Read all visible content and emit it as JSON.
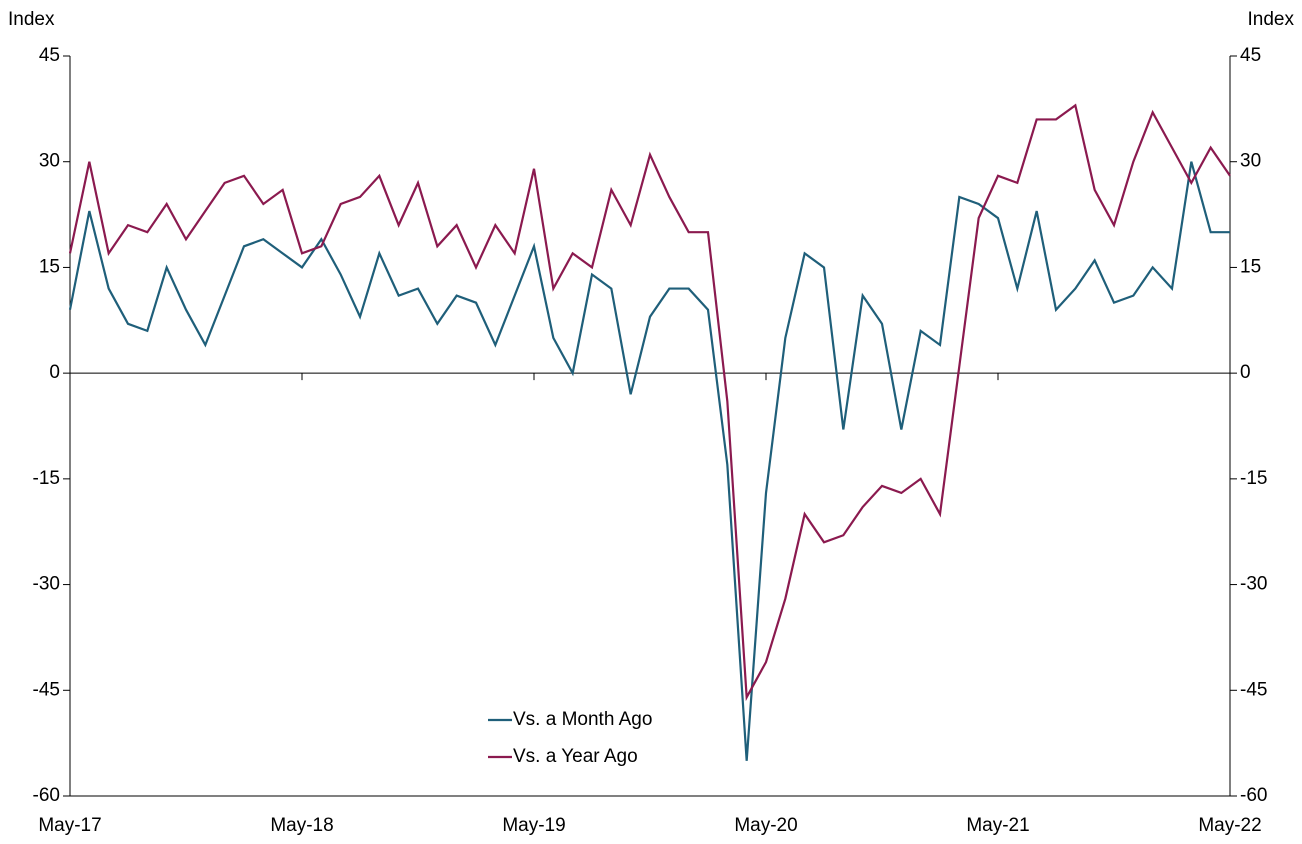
{
  "chart_data": {
    "type": "line",
    "y_label": "Index",
    "y2_label": "Index",
    "categories": [
      "May-17",
      null,
      null,
      null,
      null,
      null,
      null,
      null,
      null,
      null,
      null,
      null,
      "May-18",
      null,
      null,
      null,
      null,
      null,
      null,
      null,
      null,
      null,
      null,
      null,
      "May-19",
      null,
      null,
      null,
      null,
      null,
      null,
      null,
      null,
      null,
      null,
      null,
      "May-20",
      null,
      null,
      null,
      null,
      null,
      null,
      null,
      null,
      null,
      null,
      null,
      "May-21",
      null,
      null,
      null,
      null,
      null,
      null,
      null,
      null,
      null,
      null,
      null,
      "May-22"
    ],
    "series": [
      {
        "name": "Vs. a Month Ago",
        "color": "#1f5f7a",
        "values": [
          9,
          23,
          12,
          7,
          6,
          15,
          9,
          4,
          11,
          18,
          19,
          17,
          15,
          19,
          14,
          8,
          17,
          11,
          12,
          7,
          11,
          10,
          4,
          11,
          18,
          5,
          0,
          14,
          12,
          -3,
          8,
          12,
          12,
          9,
          -13,
          -55,
          -17,
          5,
          17,
          15,
          -8,
          11,
          7,
          -8,
          6,
          4,
          25,
          24,
          22,
          12,
          23,
          9,
          12,
          16,
          10,
          11,
          15,
          12,
          30,
          20,
          20
        ]
      },
      {
        "name": "Vs. a Year Ago",
        "color": "#8b1a4f",
        "values": [
          17,
          30,
          17,
          21,
          20,
          24,
          19,
          23,
          27,
          28,
          24,
          26,
          17,
          18,
          24,
          25,
          28,
          21,
          27,
          18,
          21,
          15,
          21,
          17,
          29,
          12,
          17,
          15,
          26,
          21,
          31,
          25,
          20,
          20,
          -4,
          -46,
          -41,
          -32,
          -20,
          -24,
          -23,
          -19,
          -16,
          -17,
          -15,
          -20,
          1,
          22,
          28,
          27,
          36,
          36,
          38,
          26,
          21,
          30,
          37,
          32,
          27,
          32,
          28
        ]
      }
    ],
    "ylim": [
      -60,
      45
    ],
    "yticks": [
      -60,
      -45,
      -30,
      -15,
      0,
      15,
      30,
      45
    ],
    "y2lim": [
      -60,
      45
    ],
    "y2ticks": [
      -60,
      -45,
      -30,
      -15,
      0,
      15,
      30,
      45
    ],
    "grid": false,
    "legend": "bottom-center"
  }
}
